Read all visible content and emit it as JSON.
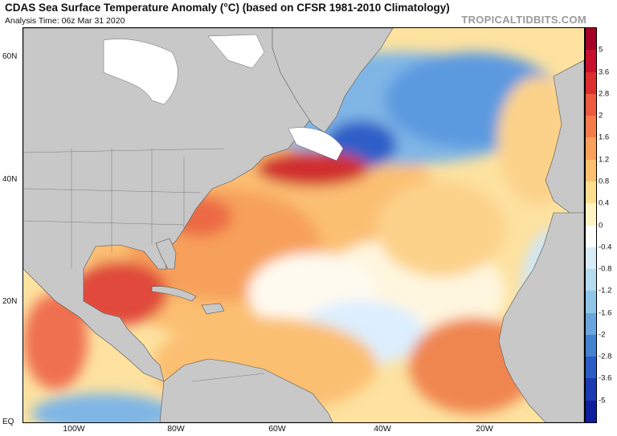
{
  "header": {
    "title": "CDAS Sea Surface Temperature Anomaly (°C) (based on CFSR 1981-2010 Climatology)",
    "subtitle": "Analysis Time: 06z Mar 31 2020",
    "brand": "TROPICALTIDBITS.COM"
  },
  "map": {
    "lat_labels": [
      "60N",
      "40N",
      "20N",
      "EQ"
    ],
    "lon_labels": [
      "100W",
      "80W",
      "60W",
      "40W",
      "20W"
    ],
    "land_color": "#c8c8c8",
    "ice_color": "#ffffff"
  },
  "colorbar": {
    "labels": [
      "5",
      "3.6",
      "2.8",
      "2",
      "1.6",
      "1.2",
      "0.8",
      "0.4",
      "0",
      "-0.4",
      "-0.8",
      "-1.2",
      "-1.6",
      "-2",
      "-2.8",
      "-3.6",
      "-5"
    ],
    "colors": [
      "#a50026",
      "#c8102e",
      "#dc2f2f",
      "#ec5a3f",
      "#f57c4a",
      "#f9a05a",
      "#fcc06e",
      "#fedd8e",
      "#fff3c4",
      "#ffffff",
      "#d7ecf7",
      "#b5dbef",
      "#90c6e8",
      "#6aa6dd",
      "#4481d0",
      "#2a5cc3",
      "#1a39b3",
      "#0d1f9c"
    ]
  }
}
